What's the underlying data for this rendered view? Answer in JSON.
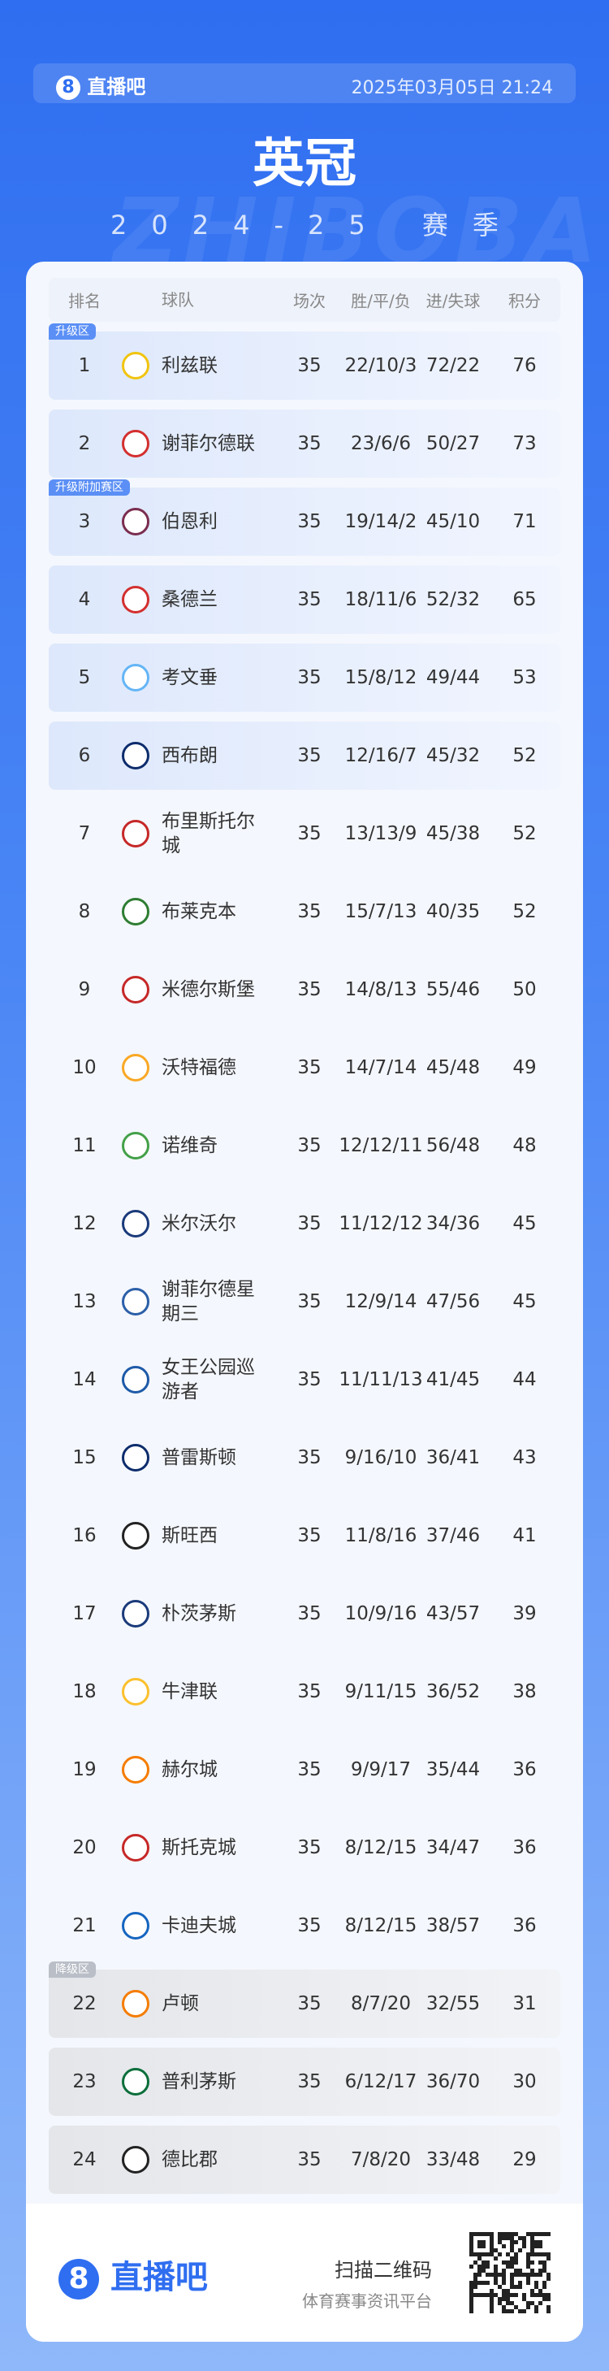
{
  "header": {
    "brand": "直播吧",
    "datetime": "2025年03月05日 21:24",
    "title": "英冠",
    "subtitle": "2024-25 赛季",
    "watermark": "ZHIBOBA"
  },
  "table": {
    "columns": [
      "排名",
      "球队",
      "场次",
      "胜/平/负",
      "进/失球",
      "积分"
    ],
    "rows": [
      {
        "zone": "升级区",
        "rank": 1,
        "team": "利兹联",
        "played": 35,
        "wdl": "22/10/3",
        "goals": "72/22",
        "points": 76
      },
      {
        "rank": 2,
        "team": "谢菲尔德联",
        "played": 35,
        "wdl": "23/6/6",
        "goals": "50/27",
        "points": 73
      },
      {
        "zone": "升级附加赛区",
        "rank": 3,
        "team": "伯恩利",
        "played": 35,
        "wdl": "19/14/2",
        "goals": "45/10",
        "points": 71
      },
      {
        "rank": 4,
        "team": "桑德兰",
        "played": 35,
        "wdl": "18/11/6",
        "goals": "52/32",
        "points": 65
      },
      {
        "rank": 5,
        "team": "考文垂",
        "played": 35,
        "wdl": "15/8/12",
        "goals": "49/44",
        "points": 53
      },
      {
        "rank": 6,
        "team": "西布朗",
        "played": 35,
        "wdl": "12/16/7",
        "goals": "45/32",
        "points": 52
      },
      {
        "rank": 7,
        "team": "布里斯托尔城",
        "played": 35,
        "wdl": "13/13/9",
        "goals": "45/38",
        "points": 52
      },
      {
        "rank": 8,
        "team": "布莱克本",
        "played": 35,
        "wdl": "15/7/13",
        "goals": "40/35",
        "points": 52
      },
      {
        "rank": 9,
        "team": "米德尔斯堡",
        "played": 35,
        "wdl": "14/8/13",
        "goals": "55/46",
        "points": 50
      },
      {
        "rank": 10,
        "team": "沃特福德",
        "played": 35,
        "wdl": "14/7/14",
        "goals": "45/48",
        "points": 49
      },
      {
        "rank": 11,
        "team": "诺维奇",
        "played": 35,
        "wdl": "12/12/11",
        "goals": "56/48",
        "points": 48
      },
      {
        "rank": 12,
        "team": "米尔沃尔",
        "played": 35,
        "wdl": "11/12/12",
        "goals": "34/36",
        "points": 45
      },
      {
        "rank": 13,
        "team": "谢菲尔德星期三",
        "played": 35,
        "wdl": "12/9/14",
        "goals": "47/56",
        "points": 45
      },
      {
        "rank": 14,
        "team": "女王公园巡游者",
        "played": 35,
        "wdl": "11/11/13",
        "goals": "41/45",
        "points": 44
      },
      {
        "rank": 15,
        "team": "普雷斯顿",
        "played": 35,
        "wdl": "9/16/10",
        "goals": "36/41",
        "points": 43
      },
      {
        "rank": 16,
        "team": "斯旺西",
        "played": 35,
        "wdl": "11/8/16",
        "goals": "37/46",
        "points": 41
      },
      {
        "rank": 17,
        "team": "朴茨茅斯",
        "played": 35,
        "wdl": "10/9/16",
        "goals": "43/57",
        "points": 39
      },
      {
        "rank": 18,
        "team": "牛津联",
        "played": 35,
        "wdl": "9/11/15",
        "goals": "36/52",
        "points": 38
      },
      {
        "rank": 19,
        "team": "赫尔城",
        "played": 35,
        "wdl": "9/9/17",
        "goals": "35/44",
        "points": 36
      },
      {
        "rank": 20,
        "team": "斯托克城",
        "played": 35,
        "wdl": "8/12/15",
        "goals": "34/47",
        "points": 36
      },
      {
        "rank": 21,
        "team": "卡迪夫城",
        "played": 35,
        "wdl": "8/12/15",
        "goals": "38/57",
        "points": 36
      },
      {
        "zone": "降级区",
        "rank": 22,
        "team": "卢顿",
        "played": 35,
        "wdl": "8/7/20",
        "goals": "32/55",
        "points": 31
      },
      {
        "rank": 23,
        "team": "普利茅斯",
        "played": 35,
        "wdl": "6/12/17",
        "goals": "36/70",
        "points": 30
      },
      {
        "rank": 24,
        "team": "德比郡",
        "played": 35,
        "wdl": "7/8/20",
        "goals": "33/48",
        "points": 29
      }
    ]
  },
  "footer": {
    "brand": "直播吧",
    "scan": "扫描二维码",
    "tagline": "体育赛事资讯平台"
  }
}
